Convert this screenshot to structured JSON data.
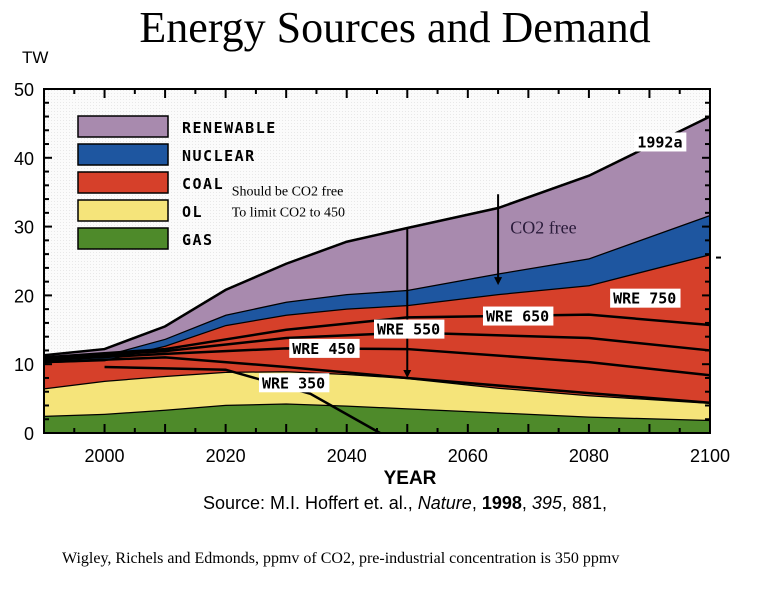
{
  "chart_data": {
    "type": "area",
    "title": "Energy Sources and Demand",
    "ylabel": "TW",
    "xlabel": "YEAR",
    "xlim": [
      1990,
      2100
    ],
    "ylim": [
      0,
      50
    ],
    "xticks": [
      2000,
      2020,
      2040,
      2060,
      2080,
      2100
    ],
    "yticks": [
      0,
      10,
      20,
      30,
      40,
      50
    ],
    "legend_position": "top-left",
    "x": [
      1990,
      2000,
      2010,
      2020,
      2030,
      2040,
      2050,
      2065,
      2080,
      2100
    ],
    "series": [
      {
        "name": "GAS",
        "color": "#4e8a2a",
        "values": [
          2.5,
          2.8,
          3.4,
          4.1,
          4.3,
          4.0,
          3.6,
          3.0,
          2.4,
          1.9
        ]
      },
      {
        "name": "OIL",
        "color": "#f5e47a",
        "values": [
          4.0,
          4.8,
          4.9,
          4.8,
          4.7,
          4.6,
          4.4,
          3.6,
          3.1,
          2.5
        ]
      },
      {
        "name": "COAL",
        "color": "#d6402a",
        "values": [
          3.8,
          3.0,
          4.4,
          6.8,
          8.2,
          9.5,
          10.6,
          13.6,
          16.0,
          21.6
        ]
      },
      {
        "name": "NUCLEAR",
        "color": "#1e56a0",
        "values": [
          0.5,
          0.7,
          1.0,
          1.5,
          1.9,
          2.1,
          2.2,
          3.0,
          3.9,
          5.7
        ]
      },
      {
        "name": "RENEWABLE",
        "color": "#a88aae",
        "values": [
          0.5,
          0.9,
          1.8,
          3.6,
          5.5,
          7.6,
          9.0,
          9.5,
          12.0,
          14.3
        ]
      }
    ],
    "legend": [
      "RENEWABLE",
      "NUCLEAR",
      "COAL",
      "OL",
      "GAS"
    ],
    "scenario_lines": [
      {
        "name": "WRE 350",
        "points": [
          [
            2000,
            9.6
          ],
          [
            2020,
            9.2
          ],
          [
            2034,
            5.7
          ],
          [
            2045.5,
            0
          ]
        ]
      },
      {
        "name": "WRE 450",
        "points": [
          [
            1990,
            10.3
          ],
          [
            2010,
            11.0
          ],
          [
            2030,
            9.6
          ],
          [
            2050,
            8.0
          ],
          [
            2080,
            5.8
          ],
          [
            2100,
            4.4
          ]
        ]
      },
      {
        "name": "WRE 550",
        "points": [
          [
            1990,
            10.6
          ],
          [
            2010,
            11.5
          ],
          [
            2030,
            12.3
          ],
          [
            2050,
            12.2
          ],
          [
            2080,
            10.3
          ],
          [
            2100,
            8.4
          ]
        ]
      },
      {
        "name": "WRE 650",
        "points": [
          [
            1990,
            10.8
          ],
          [
            2010,
            11.9
          ],
          [
            2030,
            13.8
          ],
          [
            2050,
            14.6
          ],
          [
            2080,
            13.8
          ],
          [
            2100,
            12.0
          ]
        ]
      },
      {
        "name": "WRE 750",
        "points": [
          [
            1990,
            11.0
          ],
          [
            2010,
            12.2
          ],
          [
            2030,
            15.0
          ],
          [
            2050,
            16.8
          ],
          [
            2080,
            17.2
          ],
          [
            2100,
            15.7
          ]
        ]
      }
    ],
    "annotations": [
      {
        "text": "1992a",
        "x": 2088,
        "y": 41.5
      },
      {
        "text": "Should be CO2 free",
        "x": 2021,
        "y": 34.5
      },
      {
        "text": "To limit CO2 to 450",
        "x": 2021,
        "y": 31.5
      },
      {
        "text": "CO2 free",
        "x": 2067,
        "y": 29
      },
      {
        "text": "WRE 350",
        "x": 2026,
        "y": 6.5
      },
      {
        "text": "WRE 450",
        "x": 2031,
        "y": 11.5
      },
      {
        "text": "WRE 550",
        "x": 2045,
        "y": 14.3
      },
      {
        "text": "WRE 650",
        "x": 2063,
        "y": 16.2
      },
      {
        "text": "WRE 750",
        "x": 2084,
        "y": 18.8
      }
    ],
    "arrows": [
      {
        "x": 2050,
        "from": 29.8,
        "to": 8.0
      },
      {
        "x": 2065,
        "from": 34.7,
        "to": 21.5
      }
    ]
  },
  "page": {
    "title": "Energy Sources and Demand",
    "unit": "TW",
    "xlabel": "YEAR",
    "source_prefix": "Source: M.I. Hoffert et. al., ",
    "source_journal": "Nature",
    "source_sep1": ", ",
    "source_year": "1998",
    "source_sep2": ", ",
    "source_volume": "395",
    "source_pages": ", 881,",
    "footnote": "Wigley, Richels and Edmonds, ppmv of CO2, pre-industrial concentration is 350 ppmv"
  }
}
